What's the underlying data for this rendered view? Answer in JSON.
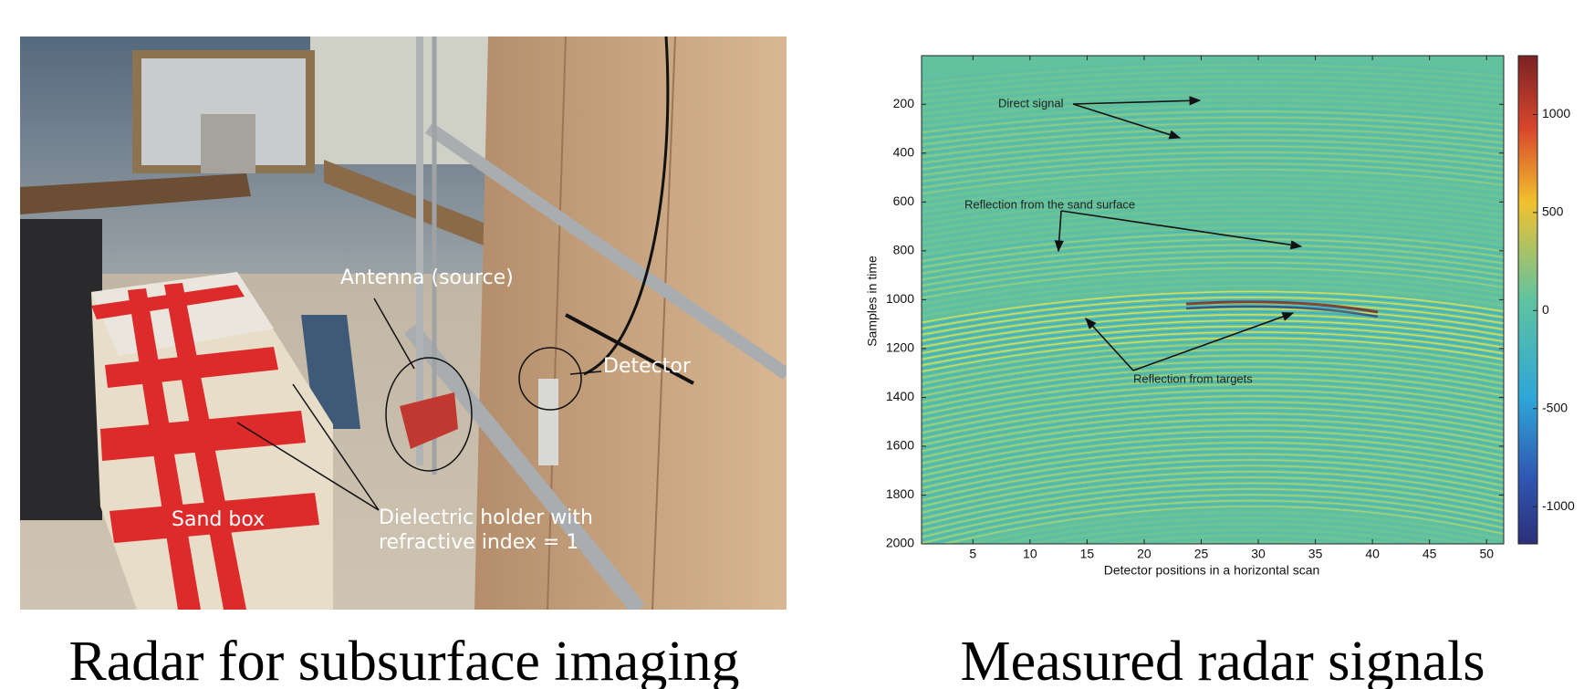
{
  "photo": {
    "labels": {
      "antenna": "Antenna (source)",
      "detector": "Detector",
      "sand_box": "Sand box",
      "holder": [
        "Dielectric holder with",
        "refractive index = 1"
      ]
    },
    "caption": "Radar for subsurface imaging"
  },
  "chart_data": {
    "type": "heatmap",
    "xlabel": "Detector positions in a horizontal scan",
    "ylabel": "Samples in time",
    "xlim": [
      0.5,
      51.5
    ],
    "xticks": [
      5,
      10,
      15,
      20,
      25,
      30,
      35,
      40,
      45,
      50
    ],
    "ylim": [
      1,
      2000
    ],
    "y_inverted": true,
    "yticks": [
      200,
      400,
      600,
      800,
      1000,
      1200,
      1400,
      1600,
      1800,
      2000
    ],
    "colorbar": {
      "colormap": "jet",
      "clim": [
        -1190,
        1300
      ],
      "ticks": [
        -1000,
        -500,
        0,
        500,
        1000
      ]
    },
    "annotations": [
      "Direct signal",
      "Reflection from the sand surface",
      "Reflection from targets"
    ],
    "caption": "Measured radar signals"
  }
}
